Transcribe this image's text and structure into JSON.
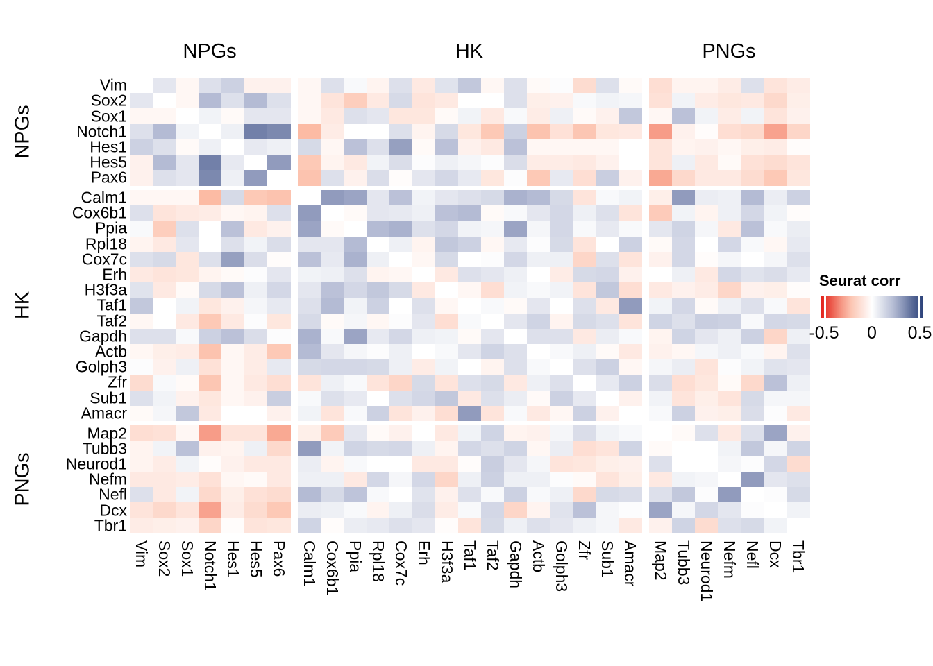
{
  "legend": {
    "title": "Seurat corr",
    "tick_labels": [
      "-0.5",
      "0",
      "0.5"
    ]
  },
  "chart_data": {
    "type": "heatmap",
    "title": "",
    "legend_title": "Seurat corr",
    "value_range": [
      -0.5,
      0.5
    ],
    "col_groups": [
      {
        "label": "NPGs",
        "start": 0,
        "end": 7
      },
      {
        "label": "HK",
        "start": 7,
        "end": 22
      },
      {
        "label": "PNGs",
        "start": 22,
        "end": 29
      }
    ],
    "row_groups": [
      {
        "label": "NPGs",
        "start": 0,
        "end": 7
      },
      {
        "label": "HK",
        "start": 7,
        "end": 22
      },
      {
        "label": "PNGs",
        "start": 22,
        "end": 29
      }
    ],
    "genes": [
      "Vim",
      "Sox2",
      "Sox1",
      "Notch1",
      "Hes1",
      "Hes5",
      "Pax6",
      "Calm1",
      "Cox6b1",
      "Ppia",
      "Rpl18",
      "Cox7c",
      "Erh",
      "H3f3a",
      "Taf1",
      "Taf2",
      "Gapdh",
      "Actb",
      "Golph3",
      "Zfr",
      "Sub1",
      "Amacr",
      "Map2",
      "Tubb3",
      "Neurod1",
      "Nefm",
      "Nefl",
      "Dcx",
      "Tbr1"
    ],
    "colors": {
      "negative_end": "#E3211A",
      "negative_mid": "#FCBBA4",
      "zero": "#FFFFFF",
      "positive_mid": "#AAB2CE",
      "positive_end": "#2B4179"
    },
    "matrix": [
      [
        0,
        0.08,
        -0.03,
        0.1,
        0.15,
        -0.05,
        -0.05,
        -0.03,
        0.1,
        0.02,
        -0.04,
        0.1,
        -0.08,
        0.09,
        0.18,
        -0.03,
        0.1,
        -0.02,
        0.01,
        -0.13,
        0.1,
        -0.02,
        -0.12,
        -0.04,
        -0.04,
        -0.07,
        0.1,
        -0.1,
        -0.07
      ],
      [
        0.08,
        0,
        -0.03,
        0.22,
        0.1,
        0.22,
        0.1,
        -0.03,
        -0.1,
        -0.18,
        -0.08,
        0.12,
        -0.1,
        -0.08,
        0,
        0,
        0.1,
        -0.06,
        -0.05,
        0.02,
        0.04,
        0.03,
        -0.11,
        0.04,
        -0.07,
        -0.09,
        -0.08,
        -0.14,
        -0.06
      ],
      [
        -0.03,
        -0.03,
        0,
        0.04,
        -0.02,
        0.08,
        0.08,
        -0.03,
        -0.08,
        0.1,
        0.08,
        -0.09,
        -0.09,
        -0.02,
        0.04,
        -0.08,
        0.02,
        -0.07,
        0.05,
        -0.02,
        -0.05,
        0.18,
        -0.03,
        0.2,
        0.04,
        -0.07,
        0.04,
        -0.1,
        -0.05
      ],
      [
        0.1,
        0.22,
        0.04,
        0,
        0.05,
        0.36,
        0.34,
        -0.25,
        -0.07,
        0,
        0,
        0.1,
        -0.04,
        0.12,
        -0.09,
        -0.2,
        0.15,
        -0.22,
        -0.11,
        -0.21,
        -0.09,
        -0.08,
        -0.3,
        -0.05,
        -0.01,
        -0.12,
        -0.14,
        -0.29,
        -0.15
      ],
      [
        0.15,
        0.1,
        -0.02,
        0.05,
        0,
        0.07,
        0.05,
        0.12,
        -0.03,
        0.2,
        0.1,
        0.29,
        -0.02,
        0.2,
        -0.05,
        -0.08,
        0.2,
        -0.03,
        -0.03,
        -0.03,
        -0.03,
        0,
        -0.1,
        -0.04,
        -0.05,
        -0.03,
        -0.06,
        -0.07,
        -0.01
      ],
      [
        -0.05,
        0.22,
        0.08,
        0.36,
        0.07,
        0,
        0.3,
        -0.2,
        -0.04,
        -0.08,
        0.04,
        0.11,
        0.01,
        0.05,
        0.03,
        0.01,
        0.11,
        -0.07,
        -0.07,
        -0.08,
        -0.05,
        0,
        -0.1,
        0.05,
        -0.08,
        -0.02,
        -0.11,
        -0.13,
        -0.1
      ],
      [
        -0.05,
        0.1,
        0.08,
        0.34,
        0.05,
        0.3,
        0,
        -0.22,
        0.1,
        -0.05,
        0.11,
        -0.01,
        0.08,
        0.13,
        0.07,
        -0.09,
        0.01,
        -0.2,
        0.07,
        -0.12,
        0.16,
        -0.05,
        -0.28,
        -0.14,
        -0.08,
        -0.08,
        -0.13,
        -0.2,
        -0.09
      ],
      [
        -0.03,
        -0.03,
        -0.03,
        -0.25,
        0.12,
        -0.2,
        -0.22,
        0,
        0.3,
        0.28,
        0.08,
        0.2,
        0.04,
        0.08,
        0.1,
        0.12,
        0.25,
        0.22,
        0.12,
        -0.1,
        0.02,
        0.04,
        -0.06,
        0.3,
        0.06,
        0.05,
        0.22,
        0.06,
        0.15
      ],
      [
        0.1,
        -0.1,
        -0.08,
        -0.07,
        -0.03,
        -0.04,
        0.1,
        0.3,
        0,
        -0.02,
        0.08,
        0.07,
        0.05,
        0.2,
        0.22,
        -0.02,
        0.02,
        0.08,
        0.13,
        0.05,
        0.1,
        -0.1,
        -0.19,
        0.04,
        -0.04,
        0.05,
        0.13,
        0.04,
        -0.01
      ],
      [
        0.02,
        -0.18,
        0.1,
        0,
        0.2,
        -0.08,
        -0.05,
        0.28,
        -0.02,
        0,
        0.22,
        0.25,
        0.1,
        0.13,
        0.04,
        0.03,
        0.28,
        0.03,
        0.13,
        0.02,
        0.07,
        0.02,
        0.08,
        0.14,
        0.03,
        -0.08,
        0.2,
        0.02,
        0.06
      ],
      [
        -0.04,
        -0.08,
        0.08,
        0,
        0.1,
        0.04,
        0.11,
        0.08,
        0.08,
        0.22,
        0,
        0.05,
        -0.04,
        0.18,
        0.15,
        -0.03,
        0.07,
        0.01,
        0.12,
        -0.1,
        0,
        0.15,
        -0.02,
        0.13,
        0,
        0.13,
        0.02,
        -0.03,
        0.07
      ],
      [
        0.1,
        0.12,
        -0.09,
        0.1,
        0.29,
        0.11,
        -0.01,
        0.2,
        0.07,
        0.25,
        0.05,
        0,
        -0.03,
        0.12,
        0,
        0.01,
        0.13,
        0.05,
        0.05,
        -0.15,
        0.1,
        -0.1,
        -0.05,
        0.13,
        -0.01,
        0.03,
        0,
        0.03,
        0.1
      ],
      [
        -0.08,
        -0.1,
        -0.09,
        -0.04,
        -0.02,
        0.01,
        0.08,
        0.04,
        0.05,
        0.1,
        -0.04,
        -0.03,
        0,
        -0.08,
        0.1,
        0.08,
        0.05,
        0,
        -0.07,
        0.12,
        0.13,
        -0.05,
        0,
        0.05,
        -0.08,
        0.13,
        0.09,
        0.11,
        0.07
      ],
      [
        0.09,
        -0.08,
        -0.02,
        0.12,
        0.2,
        0.05,
        0.13,
        0.08,
        0.2,
        0.13,
        0.18,
        0.12,
        -0.08,
        0,
        -0.03,
        -0.12,
        0.04,
        0.02,
        0.04,
        -0.1,
        0.18,
        -0.12,
        -0.08,
        -0.05,
        -0.07,
        -0.15,
        -0.05,
        -0.06,
        -0.01
      ],
      [
        0.18,
        0,
        0.04,
        -0.09,
        -0.05,
        0.03,
        0.07,
        0.1,
        0.22,
        0.04,
        0.15,
        0,
        0.1,
        -0.03,
        0,
        0.02,
        -0.02,
        0.08,
        0,
        0.1,
        -0.08,
        0.3,
        0.04,
        0.13,
        -0.02,
        0.05,
        0.1,
        0.02,
        -0.1
      ],
      [
        -0.03,
        0,
        -0.08,
        -0.2,
        -0.08,
        0.01,
        -0.09,
        0.12,
        -0.02,
        0.03,
        -0.03,
        0.01,
        0.08,
        -0.12,
        0.02,
        0,
        0.08,
        0.14,
        -0.04,
        0.12,
        0.1,
        -0.1,
        0.14,
        0.1,
        0.16,
        0.15,
        0.02,
        0.13,
        0.12
      ],
      [
        0.1,
        0.1,
        0.02,
        0.15,
        0.2,
        0.11,
        0.01,
        0.25,
        0.02,
        0.28,
        0.07,
        0.13,
        0.05,
        0.04,
        -0.02,
        0.08,
        0,
        0.1,
        0.1,
        -0.08,
        0.06,
        0.02,
        -0.04,
        0.14,
        0.08,
        0.05,
        0.15,
        -0.15,
        0.05
      ],
      [
        -0.03,
        -0.06,
        -0.07,
        -0.22,
        -0.03,
        -0.07,
        -0.2,
        0.22,
        0.08,
        0.03,
        0.01,
        0.05,
        0,
        0.02,
        0.08,
        0.14,
        0.1,
        0,
        0.02,
        0.05,
        -0.02,
        -0.08,
        -0.05,
        -0.03,
        0.03,
        0.05,
        0.02,
        -0.04,
        0.1
      ],
      [
        0.01,
        -0.05,
        0.05,
        -0.11,
        -0.03,
        -0.07,
        0.07,
        0.12,
        0.13,
        0.13,
        0.12,
        0.05,
        -0.07,
        0.04,
        0,
        -0.04,
        0.1,
        0.02,
        0,
        0.1,
        0.15,
        -0.03,
        0.03,
        0.06,
        -0.1,
        0.01,
        0.04,
        0.09,
        0.08
      ],
      [
        -0.13,
        0.02,
        -0.02,
        -0.21,
        -0.03,
        -0.08,
        -0.12,
        -0.1,
        0.05,
        0.02,
        -0.1,
        -0.15,
        0.12,
        -0.1,
        0.1,
        0.12,
        -0.08,
        0.05,
        0.1,
        0,
        0.07,
        0.15,
        0.11,
        -0.12,
        -0.09,
        -0.02,
        -0.14,
        0.2,
        0.05
      ],
      [
        0.1,
        0.04,
        -0.05,
        -0.09,
        -0.03,
        -0.05,
        0.16,
        0.02,
        0.1,
        0.07,
        0,
        0.1,
        0.13,
        0.18,
        -0.08,
        0.1,
        0.06,
        -0.02,
        0.15,
        0.07,
        0,
        -0.05,
        0.04,
        -0.1,
        -0.06,
        -0.1,
        0.12,
        0.03,
        0.03
      ],
      [
        -0.02,
        0.03,
        0.18,
        -0.08,
        0,
        0,
        -0.05,
        0.04,
        -0.1,
        0.02,
        0.15,
        -0.1,
        -0.05,
        -0.12,
        0.3,
        -0.1,
        0.02,
        -0.08,
        -0.03,
        0.15,
        -0.05,
        0,
        0.02,
        0.15,
        -0.05,
        -0.06,
        0.11,
        0.01,
        -0.08
      ],
      [
        -0.12,
        -0.11,
        -0.03,
        -0.3,
        -0.1,
        -0.1,
        -0.28,
        -0.06,
        -0.19,
        0.08,
        -0.02,
        -0.05,
        0,
        -0.08,
        0.04,
        0.14,
        -0.04,
        -0.05,
        0.03,
        0.11,
        0.04,
        0.02,
        0,
        -0.02,
        0.1,
        -0.08,
        0.1,
        0.28,
        -0.05
      ],
      [
        -0.04,
        0.04,
        0.2,
        -0.05,
        -0.04,
        0.05,
        -0.14,
        0.3,
        0.04,
        0.14,
        0.12,
        0.13,
        0.05,
        -0.04,
        0.13,
        0.1,
        0.14,
        -0.03,
        0.06,
        -0.12,
        -0.1,
        0.14,
        -0.02,
        0,
        0,
        0.04,
        0.18,
        0.03,
        0.14
      ],
      [
        -0.04,
        -0.07,
        0.04,
        -0.01,
        -0.05,
        -0.08,
        -0.08,
        0.06,
        -0.04,
        0.02,
        0,
        0,
        -0.08,
        -0.08,
        -0.01,
        0.16,
        0.08,
        0.03,
        -0.1,
        -0.09,
        -0.06,
        -0.05,
        0.1,
        0,
        0,
        0.03,
        0.01,
        0.13,
        -0.13
      ],
      [
        -0.08,
        -0.08,
        -0.07,
        -0.11,
        -0.03,
        -0.02,
        -0.08,
        0.05,
        0.05,
        -0.08,
        0.13,
        0.03,
        0.13,
        -0.15,
        0.05,
        0.15,
        0.05,
        0.05,
        0.01,
        -0.02,
        -0.1,
        -0.06,
        -0.08,
        0.04,
        0.03,
        0,
        0.3,
        0.08,
        0.1
      ],
      [
        0.1,
        -0.08,
        0.04,
        -0.14,
        -0.06,
        -0.11,
        -0.13,
        0.22,
        0.12,
        0.19,
        0.02,
        0,
        0.09,
        -0.05,
        0.1,
        0.02,
        0.15,
        0.02,
        0.05,
        -0.14,
        0.12,
        0.11,
        0.1,
        0.18,
        0.01,
        0.3,
        0,
        0.01,
        0.12
      ],
      [
        -0.1,
        -0.14,
        -0.1,
        -0.29,
        -0.07,
        -0.13,
        -0.2,
        0.06,
        0.05,
        0.02,
        -0.04,
        0.05,
        0.11,
        -0.07,
        0.02,
        0.13,
        -0.15,
        -0.04,
        0.09,
        0.2,
        0.03,
        0.01,
        0.28,
        0.03,
        0.13,
        0.08,
        0.01,
        0,
        0.04
      ],
      [
        -0.07,
        -0.06,
        -0.05,
        -0.15,
        -0.01,
        -0.1,
        -0.09,
        0.14,
        -0.01,
        0.06,
        0.07,
        0.1,
        0.08,
        -0.01,
        -0.1,
        0.12,
        0.05,
        0.1,
        0.08,
        0.05,
        0.03,
        -0.08,
        -0.05,
        0.14,
        -0.13,
        0.1,
        0.12,
        0.04,
        0
      ]
    ]
  }
}
